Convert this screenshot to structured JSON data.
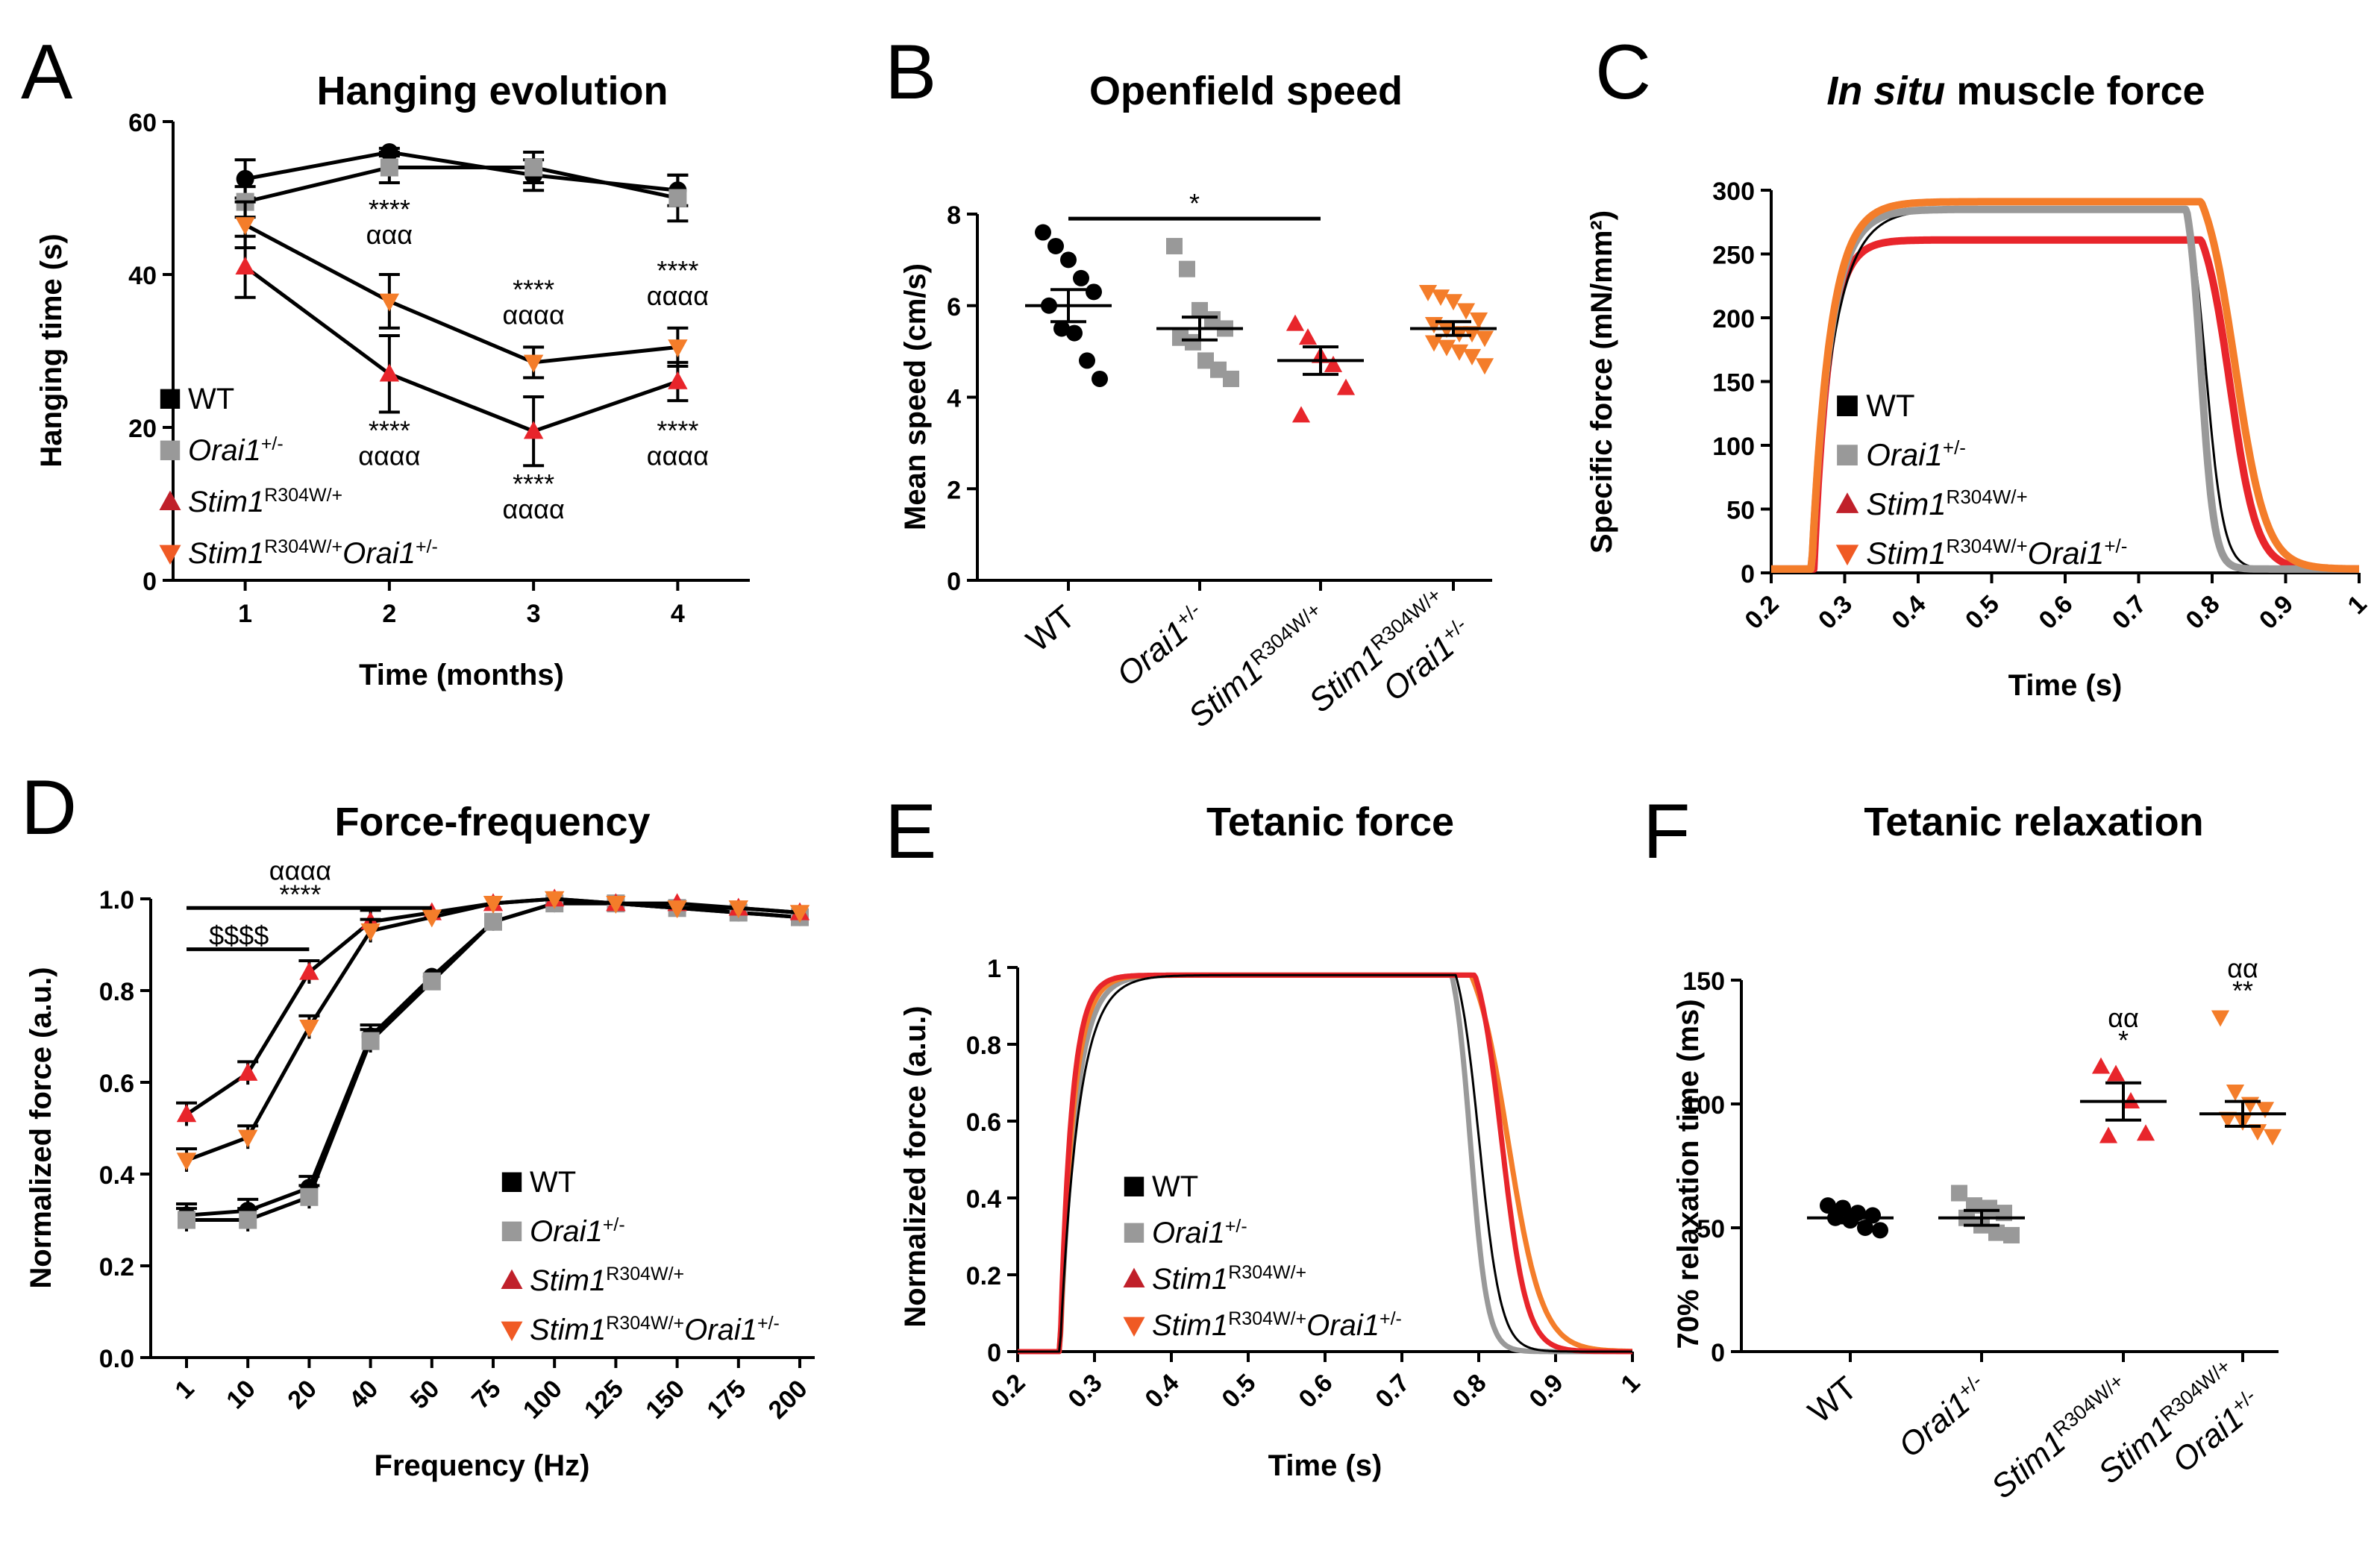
{
  "colors": {
    "WT": "#000000",
    "Orai1": "#999999",
    "Stim1": "#e8252b",
    "Stim1Orai1": "#f47d2a",
    "legend_Stim1": "#c0202a",
    "legend_Stim1Orai1": "#f05a24"
  },
  "legend": {
    "WT": "WT",
    "Orai1": {
      "base": "Orai1",
      "sup": "+/-"
    },
    "Stim1": {
      "base": "Stim1",
      "sup": "R304W/+"
    },
    "Stim1Orai1": {
      "base1": "Stim1",
      "sup1": "R304W/+",
      "base2": "Orai1",
      "sup2": "+/-"
    }
  },
  "chart_data": [
    {
      "id": "A",
      "label": "A",
      "type": "line",
      "title": "Hanging evolution",
      "xlabel": "Time (months)",
      "ylabel": "Hanging time (s)",
      "x": [
        1,
        2,
        3,
        4
      ],
      "xlim": [
        0.5,
        4.5
      ],
      "ylim": [
        0,
        60
      ],
      "yticks": [
        0,
        20,
        40,
        60
      ],
      "series": [
        {
          "name": "WT",
          "values": [
            52.5,
            56,
            53,
            51
          ],
          "errors": [
            2.5,
            0.5,
            2,
            2
          ]
        },
        {
          "name": "Orai1+/-",
          "values": [
            49.5,
            54,
            54,
            50
          ],
          "errors": [
            2,
            2,
            2,
            3
          ]
        },
        {
          "name": "Stim1R304W/+",
          "values": [
            41,
            27,
            19.5,
            26
          ],
          "errors": [
            4,
            5,
            4.5,
            2.5
          ]
        },
        {
          "name": "Stim1R304W/+Orai1+/-",
          "values": [
            46.5,
            36.5,
            28.5,
            30.5
          ],
          "errors": [
            3,
            3.5,
            2,
            2.5
          ]
        }
      ],
      "annotations": [
        {
          "x": 2,
          "y": 44,
          "stars": "****",
          "alphas": "ααα",
          "pos": "above"
        },
        {
          "x": 3,
          "y": 33.5,
          "stars": "****",
          "alphas": "αααα",
          "pos": "above"
        },
        {
          "x": 4,
          "y": 36,
          "stars": "****",
          "alphas": "αααα",
          "pos": "above"
        },
        {
          "x": 2,
          "y": 19,
          "stars": "****",
          "alphas": "αααα",
          "pos": "below"
        },
        {
          "x": 3,
          "y": 12,
          "stars": "****",
          "alphas": "αααα",
          "pos": "below"
        },
        {
          "x": 4,
          "y": 19,
          "stars": "****",
          "alphas": "αααα",
          "pos": "below"
        }
      ]
    },
    {
      "id": "B",
      "label": "B",
      "type": "scatter",
      "title": "Openfield speed",
      "ylabel": "Mean speed (cm/s)",
      "ylim": [
        0,
        8
      ],
      "yticks": [
        0,
        2,
        4,
        6,
        8
      ],
      "groups": [
        {
          "name": "WT",
          "mean": 6.0,
          "sem": 0.35,
          "points": [
            7.6,
            7.3,
            7.0,
            6.6,
            6.3,
            6.0,
            5.5,
            5.4,
            4.8,
            4.4
          ]
        },
        {
          "name": "Orai1+/-",
          "mean": 5.5,
          "sem": 0.25,
          "points": [
            7.3,
            6.8,
            5.9,
            5.7,
            5.5,
            5.3,
            5.2,
            4.8,
            4.6,
            4.4
          ]
        },
        {
          "name": "Stim1R304W/+",
          "mean": 4.8,
          "sem": 0.3,
          "points": [
            5.6,
            5.3,
            4.9,
            4.7,
            4.2,
            3.6
          ]
        },
        {
          "name": "Stim1R304W/+Orai1+/-",
          "mean": 5.5,
          "sem": 0.15,
          "points": [
            6.3,
            6.2,
            6.1,
            5.9,
            5.7,
            5.6,
            5.5,
            5.4,
            5.4,
            5.3,
            5.2,
            5.1,
            5.0,
            4.9,
            4.7
          ]
        }
      ],
      "significance": [
        {
          "from": 0,
          "to": 2,
          "y": 7.9,
          "label": "*"
        }
      ]
    },
    {
      "id": "C",
      "label": "C",
      "type": "line",
      "title_italic": "In situ",
      "title_rest": " muscle force",
      "xlabel": "Time (s)",
      "ylabel": "Specific force (mN/mm²)",
      "xlim": [
        0.2,
        1
      ],
      "xticks": [
        0.2,
        0.3,
        0.4,
        0.5,
        0.6,
        0.7,
        0.8,
        0.9,
        1
      ],
      "ylim": [
        0,
        300
      ],
      "yticks": [
        0,
        50,
        100,
        150,
        200,
        250,
        300
      ],
      "series": [
        {
          "name": "Stim1R304W/+",
          "plateau": 258,
          "onset": 0.258,
          "rise_tau": 0.02,
          "decay_start": 0.785,
          "decay_tau": 0.018
        },
        {
          "name": "WT",
          "plateau": 282,
          "onset": 0.255,
          "rise_tau": 0.03,
          "decay_start": 0.765,
          "decay_tau": 0.012
        },
        {
          "name": "Orai1+/-",
          "plateau": 282,
          "onset": 0.255,
          "rise_tau": 0.025,
          "decay_start": 0.765,
          "decay_tau": 0.009
        },
        {
          "name": "Stim1R304W/+Orai1+/-",
          "plateau": 288,
          "onset": 0.255,
          "rise_tau": 0.025,
          "decay_start": 0.785,
          "decay_tau": 0.021
        }
      ]
    },
    {
      "id": "D",
      "label": "D",
      "type": "line",
      "title": "Force-frequency",
      "xlabel": "Frequency (Hz)",
      "ylabel": "Normalized force (a.u.)",
      "categories": [
        "1",
        "10",
        "20",
        "40",
        "50",
        "75",
        "100",
        "125",
        "150",
        "175",
        "200"
      ],
      "ylim": [
        0,
        1
      ],
      "yticks": [
        "0.0",
        "0.2",
        "0.4",
        "0.6",
        "0.8",
        "1.0"
      ],
      "series": [
        {
          "name": "WT",
          "values": [
            0.31,
            0.32,
            0.37,
            0.7,
            0.83,
            0.95,
            0.99,
            0.99,
            0.98,
            0.97,
            0.96
          ]
        },
        {
          "name": "Orai1+/-",
          "values": [
            0.3,
            0.3,
            0.35,
            0.69,
            0.82,
            0.95,
            0.99,
            0.99,
            0.98,
            0.97,
            0.96
          ]
        },
        {
          "name": "Stim1R304W/+",
          "values": [
            0.53,
            0.62,
            0.84,
            0.95,
            0.97,
            0.99,
            1.0,
            0.99,
            0.99,
            0.98,
            0.97
          ]
        },
        {
          "name": "Stim1R304W/+Orai1+/-",
          "values": [
            0.43,
            0.48,
            0.72,
            0.93,
            0.96,
            0.99,
            1.0,
            0.99,
            0.98,
            0.98,
            0.97
          ]
        }
      ],
      "brackets": [
        {
          "from": 0,
          "to": 4,
          "y": 0.98,
          "labels": [
            "αααα",
            "****"
          ]
        },
        {
          "from": 0,
          "to": 2,
          "y": 0.89,
          "labels": [
            "$$$$"
          ]
        }
      ]
    },
    {
      "id": "E",
      "label": "E",
      "type": "line",
      "title": "Tetanic force",
      "xlabel": "Time (s)",
      "ylabel": "Normalized force (a.u.)",
      "xlim": [
        0.2,
        1
      ],
      "xticks": [
        0.2,
        0.3,
        0.4,
        0.5,
        0.6,
        0.7,
        0.8,
        0.9,
        1
      ],
      "ylim": [
        0,
        1
      ],
      "yticks": [
        "0",
        "0.2",
        "0.4",
        "0.6",
        "0.8",
        "1"
      ],
      "series": [
        {
          "name": "WT",
          "plateau": 0.98,
          "onset": 0.255,
          "rise_tau": 0.024,
          "decay_start": 0.77,
          "decay_tau": 0.014
        },
        {
          "name": "Orai1+/-",
          "plateau": 0.98,
          "onset": 0.255,
          "rise_tau": 0.02,
          "decay_start": 0.765,
          "decay_tau": 0.011
        },
        {
          "name": "Stim1R304W/+",
          "plateau": 0.98,
          "onset": 0.255,
          "rise_tau": 0.015,
          "decay_start": 0.795,
          "decay_tau": 0.016
        },
        {
          "name": "Stim1R304W/+Orai1+/-",
          "plateau": 0.98,
          "onset": 0.255,
          "rise_tau": 0.017,
          "decay_start": 0.79,
          "decay_tau": 0.022
        }
      ]
    },
    {
      "id": "F",
      "label": "F",
      "type": "scatter",
      "title": "Tetanic relaxation",
      "ylabel": "70% relaxation time (ms)",
      "ylim": [
        0,
        150
      ],
      "yticks": [
        0,
        50,
        100,
        150
      ],
      "groups": [
        {
          "name": "WT",
          "mean": 54,
          "sem": 2,
          "points": [
            59,
            58,
            56,
            55,
            54,
            53,
            50,
            49
          ]
        },
        {
          "name": "Orai1+/-",
          "mean": 54,
          "sem": 3,
          "points": [
            64,
            59,
            58,
            56,
            54,
            51,
            48,
            47
          ]
        },
        {
          "name": "Stim1R304W/+",
          "mean": 101,
          "sem": 7.5,
          "points": [
            115,
            112,
            101,
            88,
            87
          ]
        },
        {
          "name": "Stim1R304W/+Orai1+/-",
          "mean": 96,
          "sem": 5,
          "points": [
            135,
            105,
            100,
            98,
            94,
            93,
            89,
            87
          ]
        }
      ],
      "annotations": [
        {
          "group": 2,
          "y": 122,
          "stars": "*",
          "alphas": "αα"
        },
        {
          "group": 3,
          "y": 142,
          "stars": "**",
          "alphas": "αα"
        }
      ]
    }
  ]
}
